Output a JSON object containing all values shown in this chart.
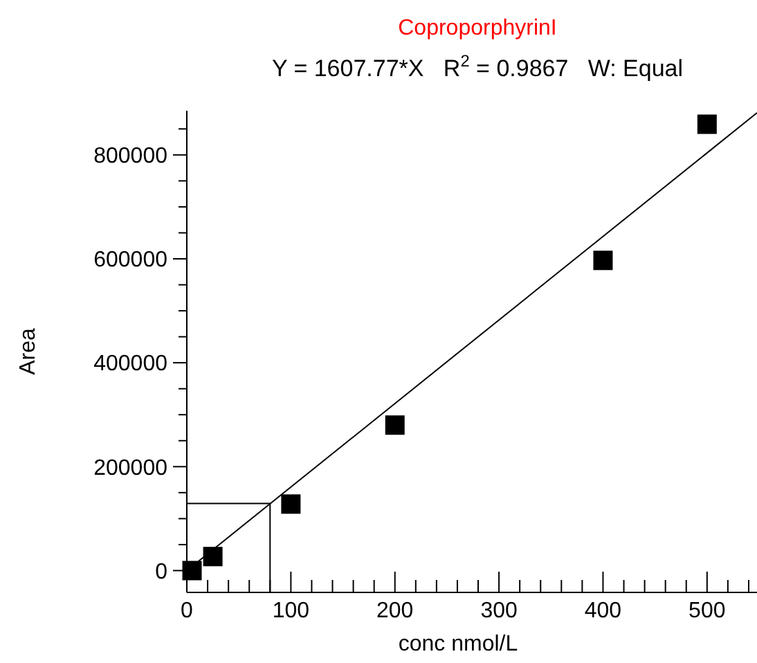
{
  "chart_data": {
    "type": "scatter",
    "title": "CoproporphyrinI",
    "subtitle": "Y = 1607.77*X   R$^{2}$ = 0.9867   W: Equal",
    "xlabel": "conc nmol/L",
    "ylabel": "Area",
    "xlim": [
      0,
      548
    ],
    "ylim": [
      -42000,
      885000
    ],
    "xticks": [
      0,
      {
        "value": 20,
        "label": null
      },
      {
        "value": 40,
        "label": null
      },
      {
        "value": 60,
        "label": null
      },
      {
        "value": 80,
        "label": null
      },
      100,
      {
        "value": 120,
        "label": null
      },
      {
        "value": 140,
        "label": null
      },
      {
        "value": 160,
        "label": null
      },
      {
        "value": 180,
        "label": null
      },
      200,
      {
        "value": 220,
        "label": null
      },
      {
        "value": 240,
        "label": null
      },
      {
        "value": 260,
        "label": null
      },
      {
        "value": 280,
        "label": null
      },
      300,
      {
        "value": 320,
        "label": null
      },
      {
        "value": 340,
        "label": null
      },
      {
        "value": 360,
        "label": null
      },
      {
        "value": 380,
        "label": null
      },
      400,
      {
        "value": 420,
        "label": null
      },
      {
        "value": 440,
        "label": null
      },
      {
        "value": 460,
        "label": null
      },
      {
        "value": 480,
        "label": null
      },
      500,
      {
        "value": 520,
        "label": null
      },
      {
        "value": 540,
        "label": null
      }
    ],
    "yticks": [
      0,
      {
        "value": 50000,
        "label": null
      },
      {
        "value": 100000,
        "label": null
      },
      {
        "value": 150000,
        "label": null
      },
      200000,
      {
        "value": 250000,
        "label": null
      },
      {
        "value": 300000,
        "label": null
      },
      {
        "value": 350000,
        "label": null
      },
      400000,
      {
        "value": 450000,
        "label": null
      },
      {
        "value": 500000,
        "label": null
      },
      {
        "value": 550000,
        "label": null
      },
      600000,
      {
        "value": 650000,
        "label": null
      },
      {
        "value": 700000,
        "label": null
      },
      {
        "value": 750000,
        "label": null
      },
      800000,
      {
        "value": 850000,
        "label": null
      }
    ],
    "grid": false,
    "series": [
      {
        "marker": "square",
        "color": "#000000",
        "x": [
          5,
          25,
          100,
          200,
          400,
          500
        ],
        "values": [
          0,
          27000,
          128000,
          280000,
          597000,
          859000
        ]
      },
      {
        "type": "line",
        "marker": "none",
        "color": "#000000",
        "x": [
          0,
          548
        ],
        "values": [
          0,
          881000
        ]
      },
      {
        "type": "line",
        "marker": "none",
        "color": "#000000",
        "x": [
          0,
          80,
          80
        ],
        "values": [
          129000,
          129000,
          -42000
        ]
      }
    ]
  }
}
